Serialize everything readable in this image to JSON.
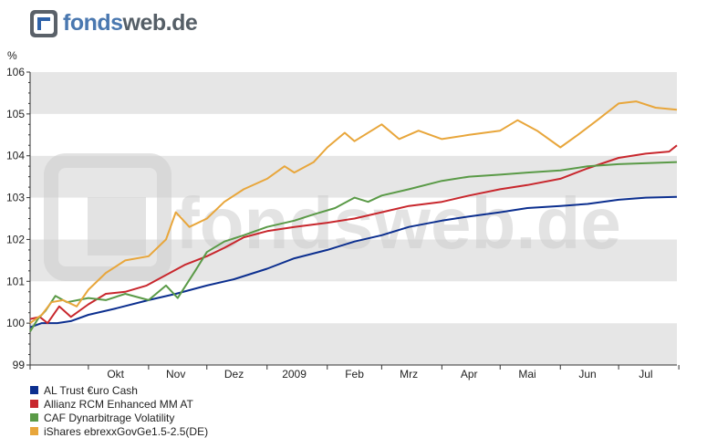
{
  "header": {
    "logo_part1": "fonds",
    "logo_part2": "web.de",
    "logo_icon": "fondsweb-logo-icon"
  },
  "watermark": {
    "text": "fondsweb.de"
  },
  "chart_data": {
    "type": "line",
    "title": "",
    "xlabel": "",
    "ylabel": "%",
    "ylim": [
      99,
      106
    ],
    "yticks": [
      "99",
      "100",
      "101",
      "102",
      "103",
      "104",
      "105",
      "106"
    ],
    "x_range": [
      "2008-09-01",
      "2009-07-31"
    ],
    "x_tick_labels": [
      {
        "label": "Okt",
        "date": "2008-10-15"
      },
      {
        "label": "Nov",
        "date": "2008-11-15"
      },
      {
        "label": "Dez",
        "date": "2008-12-15"
      },
      {
        "label": "2009",
        "date": "2009-01-15"
      },
      {
        "label": "Feb",
        "date": "2009-02-15"
      },
      {
        "label": "Mrz",
        "date": "2009-03-15"
      },
      {
        "label": "Apr",
        "date": "2009-04-15"
      },
      {
        "label": "Mai",
        "date": "2009-05-15"
      },
      {
        "label": "Jun",
        "date": "2009-06-15"
      },
      {
        "label": "Jul",
        "date": "2009-07-15"
      }
    ],
    "grid": "alternating horizontal bands",
    "legend_position": "bottom-left",
    "series": [
      {
        "name": "AL Trust €uro Cash",
        "color": "#0c2f8f",
        "points": [
          [
            "2008-09-01",
            99.9
          ],
          [
            "2008-09-07",
            100.0
          ],
          [
            "2008-09-15",
            100.0
          ],
          [
            "2008-09-22",
            100.05
          ],
          [
            "2008-10-01",
            100.2
          ],
          [
            "2008-10-15",
            100.35
          ],
          [
            "2008-11-01",
            100.55
          ],
          [
            "2008-11-15",
            100.7
          ],
          [
            "2008-12-01",
            100.9
          ],
          [
            "2008-12-15",
            101.05
          ],
          [
            "2009-01-01",
            101.3
          ],
          [
            "2009-01-15",
            101.55
          ],
          [
            "2009-02-01",
            101.75
          ],
          [
            "2009-02-15",
            101.95
          ],
          [
            "2009-03-01",
            102.1
          ],
          [
            "2009-03-15",
            102.3
          ],
          [
            "2009-04-01",
            102.45
          ],
          [
            "2009-04-15",
            102.55
          ],
          [
            "2009-05-01",
            102.65
          ],
          [
            "2009-05-15",
            102.75
          ],
          [
            "2009-06-01",
            102.8
          ],
          [
            "2009-06-15",
            102.85
          ],
          [
            "2009-07-01",
            102.95
          ],
          [
            "2009-07-15",
            103.0
          ],
          [
            "2009-07-31",
            103.02
          ]
        ]
      },
      {
        "name": "Allianz RCM Enhanced MM AT",
        "color": "#c8272d",
        "points": [
          [
            "2008-09-01",
            100.1
          ],
          [
            "2008-09-06",
            100.15
          ],
          [
            "2008-09-10",
            100.0
          ],
          [
            "2008-09-16",
            100.4
          ],
          [
            "2008-09-22",
            100.15
          ],
          [
            "2008-10-01",
            100.45
          ],
          [
            "2008-10-10",
            100.7
          ],
          [
            "2008-10-20",
            100.75
          ],
          [
            "2008-10-31",
            100.9
          ],
          [
            "2008-11-10",
            101.15
          ],
          [
            "2008-11-20",
            101.4
          ],
          [
            "2008-12-01",
            101.6
          ],
          [
            "2008-12-10",
            101.8
          ],
          [
            "2008-12-20",
            102.05
          ],
          [
            "2009-01-01",
            102.2
          ],
          [
            "2009-01-15",
            102.3
          ],
          [
            "2009-02-01",
            102.4
          ],
          [
            "2009-02-15",
            102.5
          ],
          [
            "2009-03-01",
            102.65
          ],
          [
            "2009-03-15",
            102.8
          ],
          [
            "2009-04-01",
            102.9
          ],
          [
            "2009-04-15",
            103.05
          ],
          [
            "2009-05-01",
            103.2
          ],
          [
            "2009-05-15",
            103.3
          ],
          [
            "2009-06-01",
            103.45
          ],
          [
            "2009-06-15",
            103.7
          ],
          [
            "2009-07-01",
            103.95
          ],
          [
            "2009-07-15",
            104.05
          ],
          [
            "2009-07-27",
            104.1
          ],
          [
            "2009-07-31",
            104.25
          ]
        ]
      },
      {
        "name": "CAF Dynarbitrage Volatility",
        "color": "#5a9a47",
        "points": [
          [
            "2008-09-01",
            99.8
          ],
          [
            "2008-09-05",
            100.1
          ],
          [
            "2008-09-09",
            100.3
          ],
          [
            "2008-09-14",
            100.65
          ],
          [
            "2008-09-20",
            100.5
          ],
          [
            "2008-10-01",
            100.6
          ],
          [
            "2008-10-10",
            100.55
          ],
          [
            "2008-10-20",
            100.7
          ],
          [
            "2008-11-01",
            100.55
          ],
          [
            "2008-11-10",
            100.9
          ],
          [
            "2008-11-16",
            100.6
          ],
          [
            "2008-11-25",
            101.25
          ],
          [
            "2008-12-01",
            101.7
          ],
          [
            "2008-12-10",
            101.95
          ],
          [
            "2008-12-20",
            102.1
          ],
          [
            "2009-01-01",
            102.3
          ],
          [
            "2009-01-15",
            102.45
          ],
          [
            "2009-01-25",
            102.6
          ],
          [
            "2009-02-05",
            102.75
          ],
          [
            "2009-02-15",
            103.0
          ],
          [
            "2009-02-22",
            102.9
          ],
          [
            "2009-03-01",
            103.05
          ],
          [
            "2009-03-15",
            103.2
          ],
          [
            "2009-04-01",
            103.4
          ],
          [
            "2009-04-15",
            103.5
          ],
          [
            "2009-05-01",
            103.55
          ],
          [
            "2009-05-15",
            103.6
          ],
          [
            "2009-06-01",
            103.65
          ],
          [
            "2009-06-15",
            103.75
          ],
          [
            "2009-07-01",
            103.8
          ],
          [
            "2009-07-31",
            103.85
          ]
        ]
      },
      {
        "name": "iShares ebrexxGovGe1.5-2.5(DE)",
        "color": "#e8a63b",
        "points": [
          [
            "2008-09-01",
            100.0
          ],
          [
            "2008-09-07",
            100.2
          ],
          [
            "2008-09-12",
            100.5
          ],
          [
            "2008-09-18",
            100.55
          ],
          [
            "2008-09-25",
            100.4
          ],
          [
            "2008-10-01",
            100.8
          ],
          [
            "2008-10-10",
            101.2
          ],
          [
            "2008-10-20",
            101.5
          ],
          [
            "2008-11-01",
            101.6
          ],
          [
            "2008-11-10",
            102.0
          ],
          [
            "2008-11-15",
            102.65
          ],
          [
            "2008-11-22",
            102.3
          ],
          [
            "2008-12-01",
            102.5
          ],
          [
            "2008-12-10",
            102.9
          ],
          [
            "2008-12-20",
            103.2
          ],
          [
            "2009-01-01",
            103.45
          ],
          [
            "2009-01-10",
            103.75
          ],
          [
            "2009-01-15",
            103.6
          ],
          [
            "2009-01-25",
            103.85
          ],
          [
            "2009-02-01",
            104.2
          ],
          [
            "2009-02-10",
            104.55
          ],
          [
            "2009-02-15",
            104.35
          ],
          [
            "2009-03-01",
            104.75
          ],
          [
            "2009-03-10",
            104.4
          ],
          [
            "2009-03-20",
            104.6
          ],
          [
            "2009-04-01",
            104.4
          ],
          [
            "2009-04-15",
            104.5
          ],
          [
            "2009-05-01",
            104.6
          ],
          [
            "2009-05-10",
            104.85
          ],
          [
            "2009-05-20",
            104.6
          ],
          [
            "2009-06-01",
            104.2
          ],
          [
            "2009-06-10",
            104.5
          ],
          [
            "2009-06-20",
            104.85
          ],
          [
            "2009-07-01",
            105.25
          ],
          [
            "2009-07-10",
            105.3
          ],
          [
            "2009-07-20",
            105.15
          ],
          [
            "2009-07-31",
            105.1
          ]
        ]
      }
    ]
  }
}
